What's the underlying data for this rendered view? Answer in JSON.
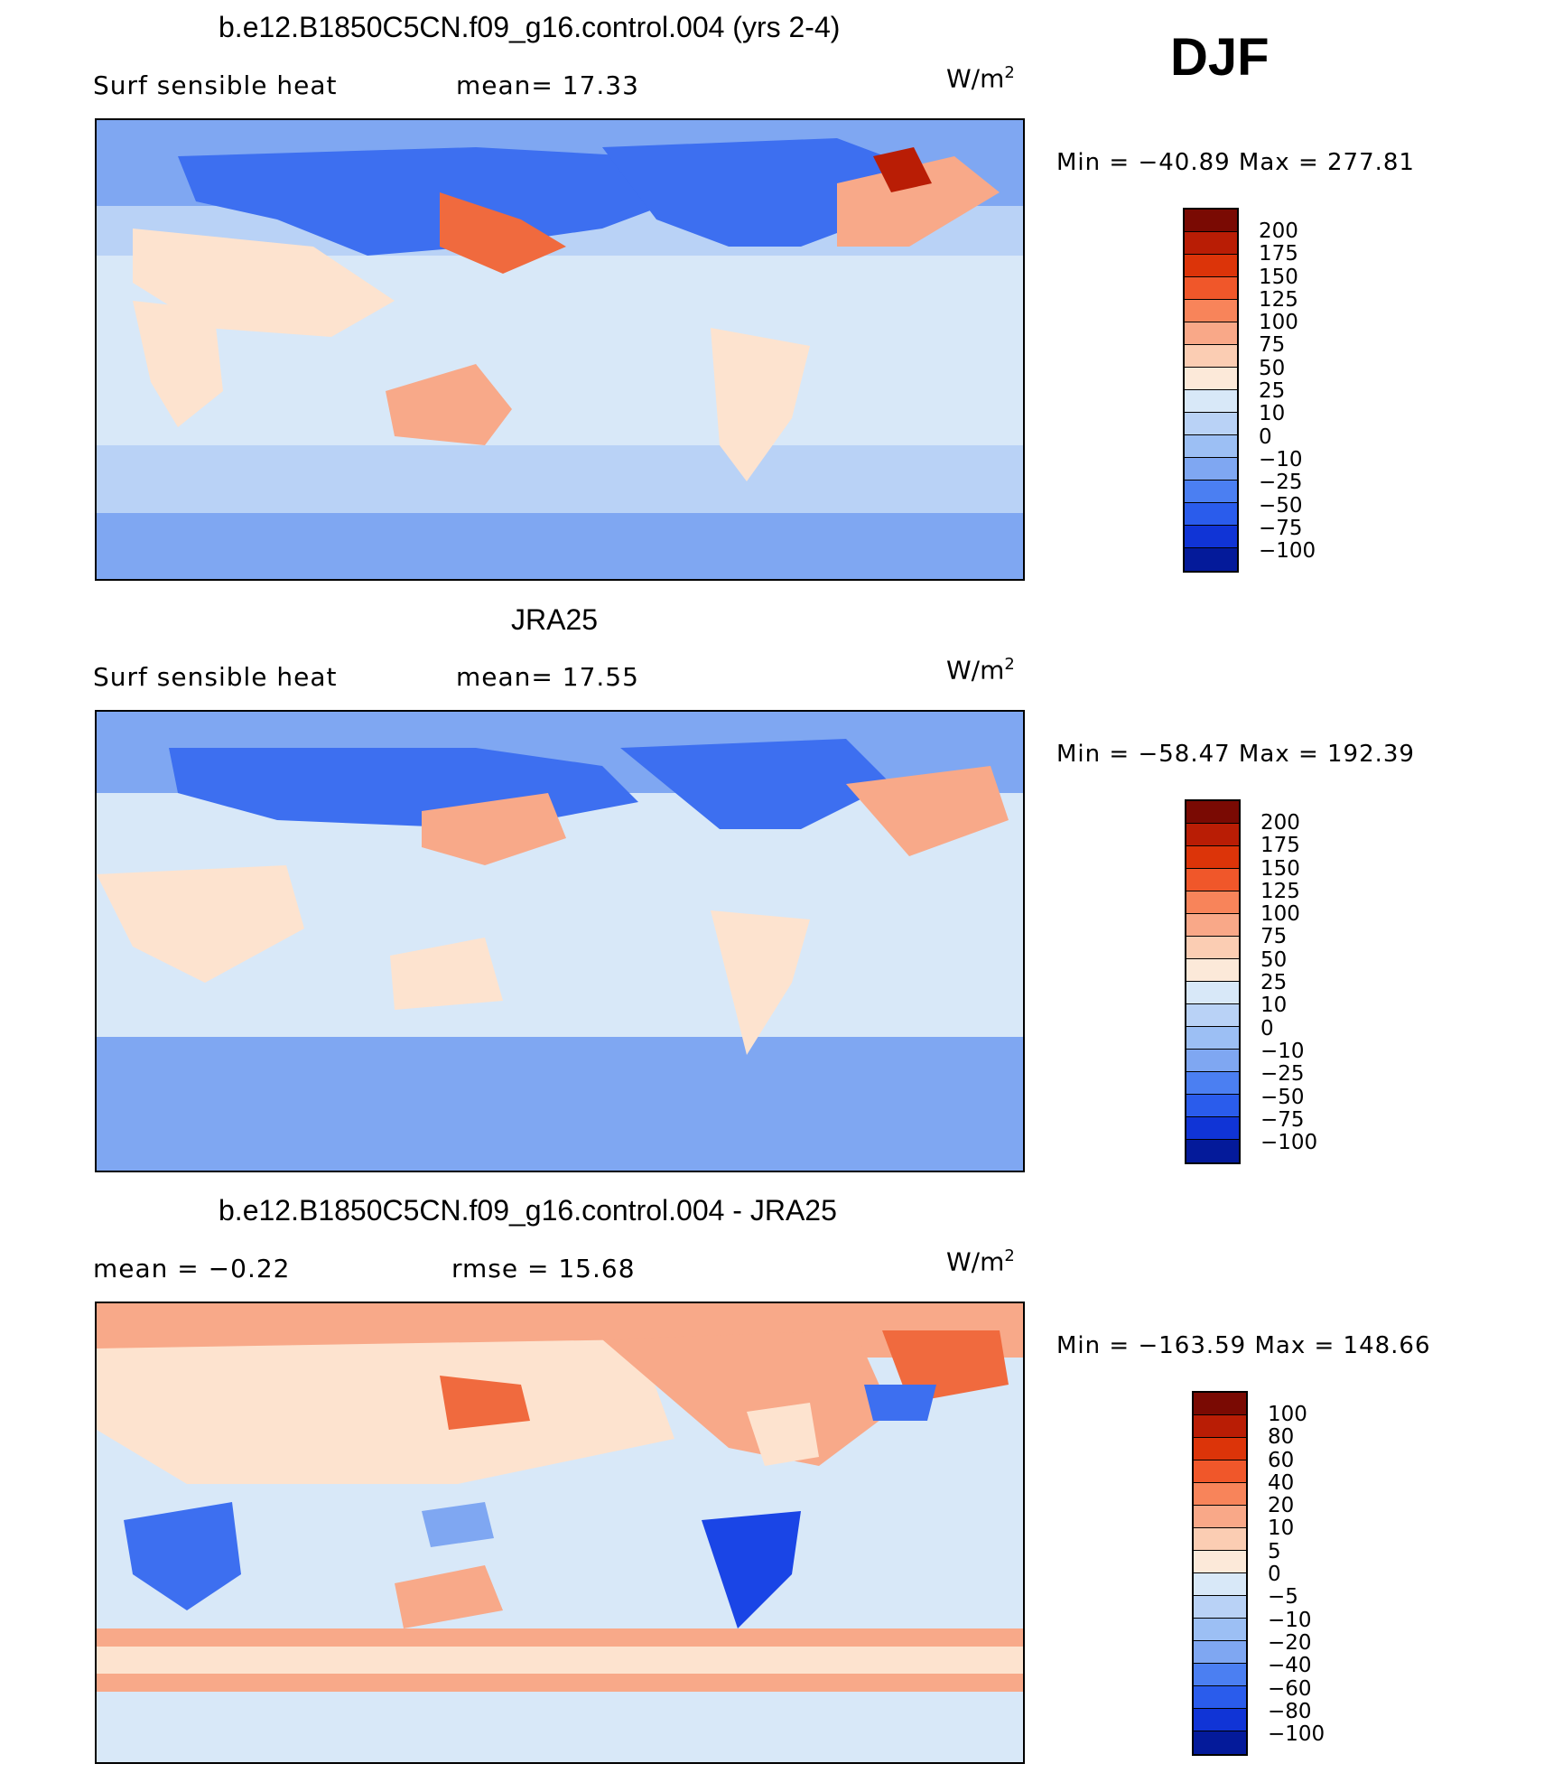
{
  "season": "DJF",
  "units_base": "W/m",
  "units_exp": "2",
  "palette": {
    "land_outline": "#000000",
    "ocean_neutral": "#d8e8f8",
    "cool_light": "#b9d2f6",
    "cool_mid": "#7fa7f2",
    "cool_strong": "#3d6ff0",
    "cool_deep": "#1a45e6",
    "warm_light": "#fde3cf",
    "warm_mid": "#f8a989",
    "warm_strong": "#f06a3e",
    "warm_deep": "#b91d05"
  },
  "panels": [
    {
      "title": "b.e12.B1850C5CN.f09_g16.control.004 (yrs 2-4)",
      "left_stat": "Surf  sensible  heat",
      "right_stat": "mean=   17.33",
      "minmax": "Min  =  −40.89  Max  =  277.81"
    },
    {
      "title": "JRA25",
      "left_stat": "Surf  sensible  heat",
      "right_stat": "mean=   17.55",
      "minmax": "Min  =  −58.47  Max  =  192.39"
    },
    {
      "title": "b.e12.B1850C5CN.f09_g16.control.004 - JRA25",
      "left_stat": "mean  =    −0.22",
      "right_stat": "rmse  =    15.68",
      "minmax": "Min  =  −163.59  Max  =  148.66"
    }
  ],
  "colorbars": [
    {
      "labels": [
        "200",
        "175",
        "150",
        "125",
        "100",
        "75",
        "50",
        "25",
        "10",
        "0",
        "−10",
        "−25",
        "−50",
        "−75",
        "−100"
      ],
      "colors": [
        "#7a0a03",
        "#b91d05",
        "#dc3409",
        "#f0572a",
        "#f8845a",
        "#f9a888",
        "#fbcdb3",
        "#fce9d9",
        "#d8e8f8",
        "#b9d2f6",
        "#9cbff4",
        "#7fa7f2",
        "#4b7ff2",
        "#2a5cec",
        "#1034d6",
        "#041a9a"
      ]
    },
    {
      "labels": [
        "200",
        "175",
        "150",
        "125",
        "100",
        "75",
        "50",
        "25",
        "10",
        "0",
        "−10",
        "−25",
        "−50",
        "−75",
        "−100"
      ],
      "colors": [
        "#7a0a03",
        "#b91d05",
        "#dc3409",
        "#f0572a",
        "#f8845a",
        "#f9a888",
        "#fbcdb3",
        "#fce9d9",
        "#d8e8f8",
        "#b9d2f6",
        "#9cbff4",
        "#7fa7f2",
        "#4b7ff2",
        "#2a5cec",
        "#1034d6",
        "#041a9a"
      ]
    },
    {
      "labels": [
        "100",
        "80",
        "60",
        "40",
        "20",
        "10",
        "5",
        "0",
        "−5",
        "−10",
        "−20",
        "−40",
        "−60",
        "−80",
        "−100"
      ],
      "colors": [
        "#7a0a03",
        "#b91d05",
        "#dc3409",
        "#f0572a",
        "#f8845a",
        "#f9a888",
        "#fbcdb3",
        "#fce9d9",
        "#d8e8f8",
        "#b9d2f6",
        "#9cbff4",
        "#7fa7f2",
        "#4b7ff2",
        "#2a5cec",
        "#1034d6",
        "#041a9a"
      ]
    }
  ]
}
